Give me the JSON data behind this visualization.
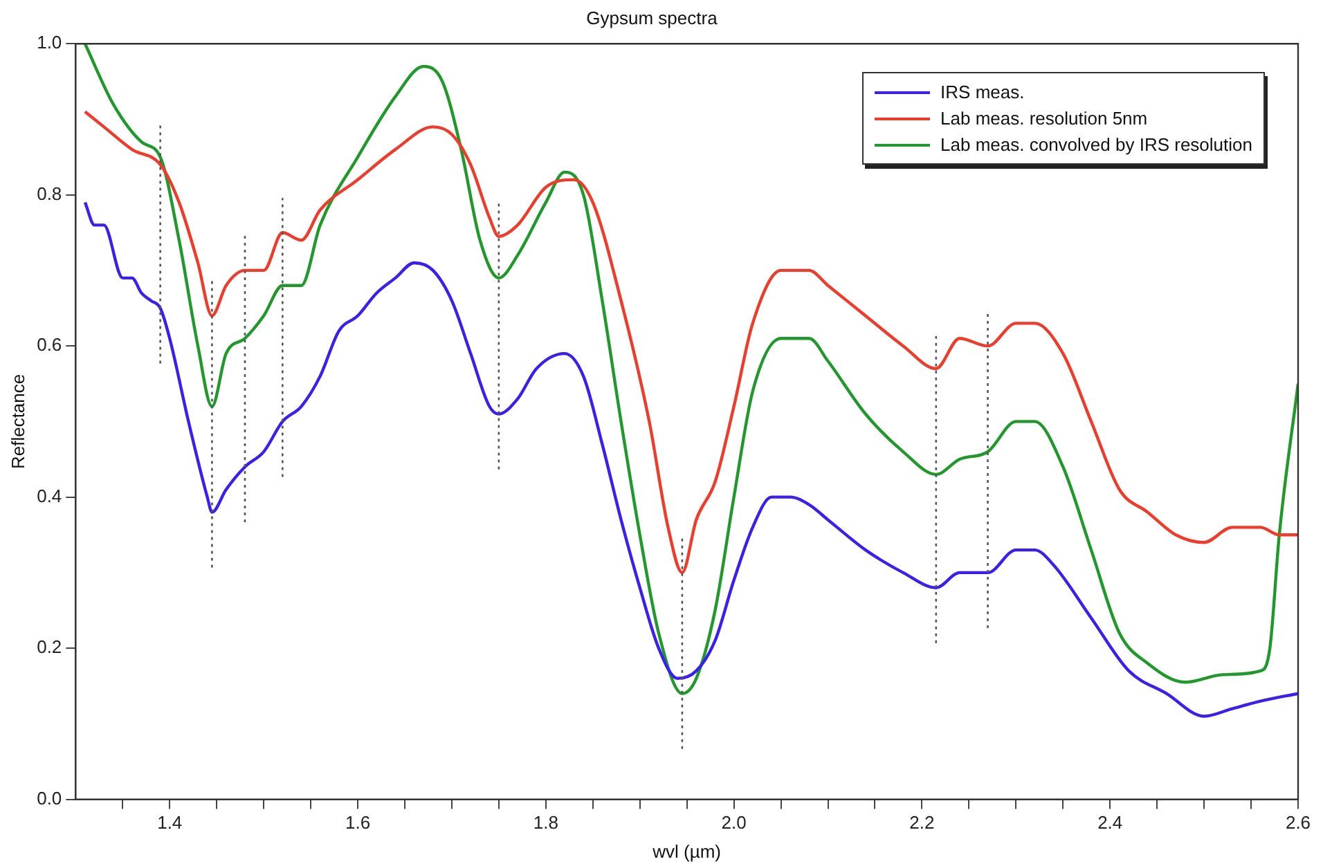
{
  "chart_data": {
    "type": "line",
    "title": "Gypsum spectra",
    "xlabel": "wvl (µm)",
    "ylabel": "Reflectance",
    "xlim": [
      1.3,
      2.6
    ],
    "ylim": [
      0,
      1
    ],
    "xticks": [
      {
        "value": 1.35,
        "label": null
      },
      1.4,
      {
        "value": 1.45,
        "label": null
      },
      {
        "value": 1.5,
        "label": null
      },
      {
        "value": 1.55,
        "label": null
      },
      1.6,
      {
        "value": 1.65,
        "label": null
      },
      {
        "value": 1.7,
        "label": null
      },
      {
        "value": 1.75,
        "label": null
      },
      1.8,
      {
        "value": 1.85,
        "label": null
      },
      {
        "value": 1.9,
        "label": null
      },
      {
        "value": 1.95,
        "label": null
      },
      {
        "value": 2.0,
        "label": "2.0"
      },
      {
        "value": 2.05,
        "label": null
      },
      {
        "value": 2.1,
        "label": null
      },
      {
        "value": 2.15,
        "label": null
      },
      2.2,
      {
        "value": 2.25,
        "label": null
      },
      {
        "value": 2.3,
        "label": null
      },
      {
        "value": 2.35,
        "label": null
      },
      2.4,
      {
        "value": 2.45,
        "label": null
      },
      {
        "value": 2.5,
        "label": null
      },
      {
        "value": 2.55,
        "label": null
      },
      2.6
    ],
    "yticks": [
      {
        "value": 0,
        "label": "0.0"
      },
      {
        "value": 0.2,
        "label": "0.2"
      },
      {
        "value": 0.4,
        "label": "0.4"
      },
      {
        "value": 0.6,
        "label": "0.6"
      },
      {
        "value": 0.8,
        "label": "0.8"
      },
      {
        "value": 1,
        "label": "1.0"
      }
    ],
    "grid": false,
    "legend": "top right",
    "marker": "none",
    "line_style": "solid",
    "series": [
      {
        "name": "IRS meas.",
        "color": "#3a1ff0",
        "x": [
          1.31,
          1.32,
          1.33,
          1.35,
          1.36,
          1.37,
          1.38,
          1.39,
          1.4,
          1.42,
          1.44,
          1.445,
          1.46,
          1.48,
          1.5,
          1.52,
          1.54,
          1.56,
          1.58,
          1.6,
          1.62,
          1.64,
          1.66,
          1.68,
          1.7,
          1.72,
          1.74,
          1.75,
          1.77,
          1.79,
          1.82,
          1.84,
          1.86,
          1.88,
          1.9,
          1.92,
          1.94,
          1.96,
          1.98,
          2.0,
          2.02,
          2.04,
          2.06,
          2.08,
          2.1,
          2.14,
          2.18,
          2.215,
          2.24,
          2.27,
          2.3,
          2.32,
          2.34,
          2.38,
          2.42,
          2.46,
          2.5,
          2.53,
          2.56,
          2.6
        ],
        "values": [
          0.79,
          0.76,
          0.76,
          0.69,
          0.69,
          0.67,
          0.66,
          0.65,
          0.61,
          0.5,
          0.4,
          0.38,
          0.41,
          0.44,
          0.46,
          0.5,
          0.52,
          0.56,
          0.62,
          0.64,
          0.67,
          0.69,
          0.71,
          0.7,
          0.66,
          0.59,
          0.52,
          0.51,
          0.53,
          0.57,
          0.59,
          0.56,
          0.47,
          0.37,
          0.28,
          0.2,
          0.16,
          0.17,
          0.21,
          0.29,
          0.36,
          0.4,
          0.4,
          0.39,
          0.37,
          0.33,
          0.3,
          0.28,
          0.3,
          0.3,
          0.33,
          0.33,
          0.31,
          0.24,
          0.17,
          0.14,
          0.11,
          0.12,
          0.13,
          0.14
        ]
      },
      {
        "name": "Lab meas. resolution 5nm",
        "color": "#f03a2a",
        "x": [
          1.31,
          1.33,
          1.36,
          1.39,
          1.41,
          1.43,
          1.445,
          1.46,
          1.48,
          1.5,
          1.52,
          1.54,
          1.56,
          1.6,
          1.64,
          1.68,
          1.7,
          1.72,
          1.74,
          1.75,
          1.77,
          1.8,
          1.83,
          1.85,
          1.88,
          1.91,
          1.93,
          1.945,
          1.96,
          1.98,
          2.0,
          2.02,
          2.05,
          2.08,
          2.1,
          2.14,
          2.18,
          2.215,
          2.24,
          2.27,
          2.3,
          2.32,
          2.35,
          2.38,
          2.41,
          2.44,
          2.47,
          2.5,
          2.53,
          2.56,
          2.58,
          2.6
        ],
        "values": [
          0.91,
          0.89,
          0.86,
          0.84,
          0.79,
          0.71,
          0.64,
          0.68,
          0.7,
          0.7,
          0.75,
          0.74,
          0.78,
          0.82,
          0.86,
          0.89,
          0.88,
          0.84,
          0.77,
          0.745,
          0.76,
          0.81,
          0.82,
          0.79,
          0.66,
          0.5,
          0.36,
          0.3,
          0.37,
          0.42,
          0.52,
          0.63,
          0.7,
          0.7,
          0.68,
          0.64,
          0.6,
          0.57,
          0.61,
          0.6,
          0.63,
          0.63,
          0.59,
          0.5,
          0.41,
          0.38,
          0.35,
          0.34,
          0.36,
          0.36,
          0.35,
          0.35
        ]
      },
      {
        "name": "Lab meas. convolved by IRS resolution",
        "color": "#1f9a2a",
        "x": [
          1.31,
          1.34,
          1.37,
          1.39,
          1.41,
          1.43,
          1.445,
          1.46,
          1.48,
          1.5,
          1.52,
          1.54,
          1.56,
          1.6,
          1.64,
          1.67,
          1.69,
          1.71,
          1.73,
          1.75,
          1.77,
          1.8,
          1.82,
          1.84,
          1.86,
          1.88,
          1.9,
          1.92,
          1.945,
          1.96,
          1.98,
          2.0,
          2.02,
          2.05,
          2.08,
          2.1,
          2.14,
          2.18,
          2.215,
          2.24,
          2.27,
          2.3,
          2.32,
          2.35,
          2.38,
          2.41,
          2.44,
          2.48,
          2.52,
          2.56,
          2.57,
          2.58,
          2.6
        ],
        "values": [
          1.0,
          0.92,
          0.87,
          0.85,
          0.74,
          0.6,
          0.52,
          0.59,
          0.61,
          0.64,
          0.68,
          0.68,
          0.76,
          0.85,
          0.93,
          0.97,
          0.95,
          0.86,
          0.74,
          0.69,
          0.72,
          0.79,
          0.83,
          0.8,
          0.66,
          0.5,
          0.35,
          0.22,
          0.14,
          0.16,
          0.25,
          0.4,
          0.54,
          0.61,
          0.61,
          0.58,
          0.51,
          0.46,
          0.43,
          0.45,
          0.46,
          0.5,
          0.5,
          0.44,
          0.33,
          0.22,
          0.18,
          0.155,
          0.165,
          0.17,
          0.2,
          0.35,
          0.55
        ]
      }
    ],
    "ref_lines": [
      {
        "axis": "x",
        "value": 1.39,
        "label": null,
        "line_style": "dotted",
        "color": "#555555"
      },
      {
        "axis": "x",
        "value": 1.445,
        "label": null,
        "line_style": "dotted",
        "color": "#555555"
      },
      {
        "axis": "x",
        "value": 1.48,
        "label": null,
        "line_style": "dotted",
        "color": "#555555"
      },
      {
        "axis": "x",
        "value": 1.52,
        "label": null,
        "line_style": "dotted",
        "color": "#555555"
      },
      {
        "axis": "x",
        "value": 1.75,
        "label": null,
        "line_style": "dotted",
        "color": "#555555"
      },
      {
        "axis": "x",
        "value": 1.945,
        "label": null,
        "line_style": "dotted",
        "color": "#555555"
      },
      {
        "axis": "x",
        "value": 2.215,
        "label": null,
        "line_style": "dotted",
        "color": "#555555"
      },
      {
        "axis": "x",
        "value": 2.27,
        "label": null,
        "line_style": "dotted",
        "color": "#555555"
      }
    ]
  }
}
